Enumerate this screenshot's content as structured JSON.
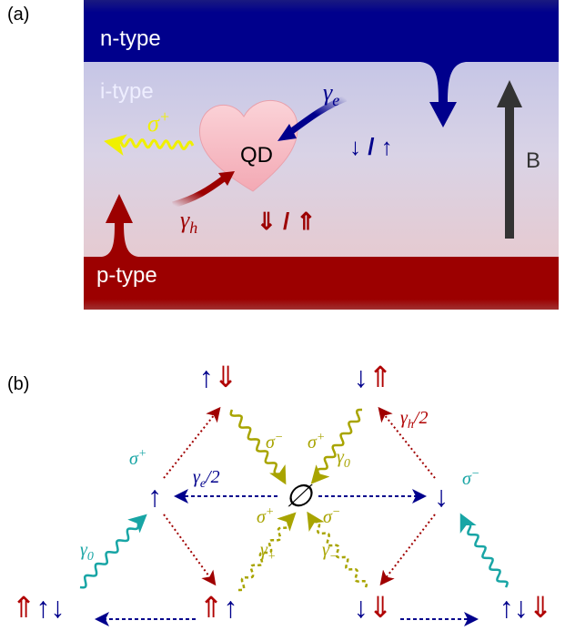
{
  "panel_a": {
    "label": "(a)",
    "n_type": "n-type",
    "i_type": "i-type",
    "p_type": "p-type",
    "qd": "QD",
    "sigma": {
      "base": "σ",
      "sup": "+"
    },
    "gamma_e": {
      "base": "γ",
      "sub": "e"
    },
    "gamma_h": {
      "base": "γ",
      "sub": "h"
    },
    "electron_spin": "↓ / ↑",
    "hole_spin": "⇓ / ⇑",
    "field": "B"
  },
  "panel_b": {
    "label": "(b)",
    "center": "∅",
    "states": [
      [
        "↑",
        "⇓"
      ],
      [
        "↓",
        "⇑"
      ],
      [
        "↑"
      ],
      [
        "↓"
      ],
      [
        "⇑",
        "↑",
        "↓"
      ],
      [
        "⇑",
        "↑"
      ],
      [
        "↓",
        "⇓"
      ],
      [
        "↑",
        "↓",
        "⇓"
      ]
    ],
    "labels": [
      {
        "base": "σ",
        "sup": "−"
      },
      {
        "base": "σ",
        "sup": "+"
      },
      {
        "base": "γ",
        "sub": "0"
      },
      {
        "base": "γ",
        "sub": "h",
        "suffix": "/2"
      },
      {
        "base": "γ",
        "sub": "e",
        "suffix": "/2"
      },
      {
        "base": "σ",
        "sup": "+"
      },
      {
        "base": "γ",
        "sub": "0"
      },
      {
        "base": "σ",
        "sup": "−"
      },
      {
        "base": "σ",
        "sup": "+"
      },
      {
        "base": "σ",
        "sup": "−"
      },
      {
        "base": "γ",
        "sub": "+"
      },
      {
        "base": "γ",
        "sub": "−"
      }
    ]
  }
}
